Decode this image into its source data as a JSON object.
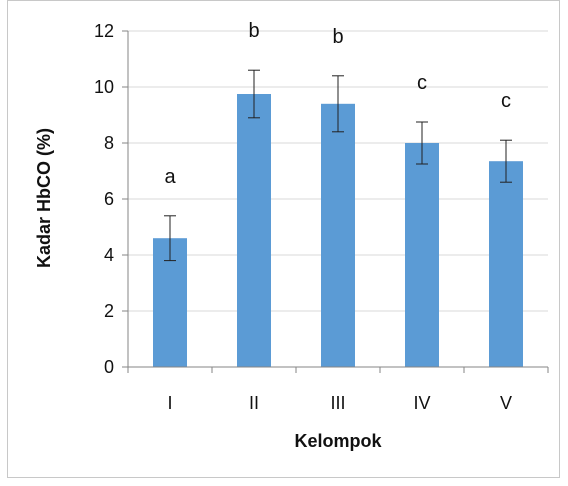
{
  "chart_data": {
    "type": "bar",
    "categories": [
      "I",
      "II",
      "III",
      "IV",
      "V"
    ],
    "values": [
      4.6,
      9.75,
      9.4,
      8.0,
      7.35
    ],
    "errors": [
      0.8,
      0.85,
      1.0,
      0.75,
      0.75
    ],
    "significance_labels": [
      "a",
      "b",
      "b",
      "c",
      "c"
    ],
    "xlabel": "Kelompok",
    "ylabel": "Kadar HbCO (%)",
    "ylim": [
      0,
      12
    ],
    "yticks": [
      "0",
      "2",
      "4",
      "6",
      "8",
      "10",
      "12"
    ],
    "grid": "horizontal",
    "legend": "none",
    "bar_color": "#5b9bd5",
    "gridline_color": "#d9d9d9",
    "axis_color": "#868686"
  }
}
